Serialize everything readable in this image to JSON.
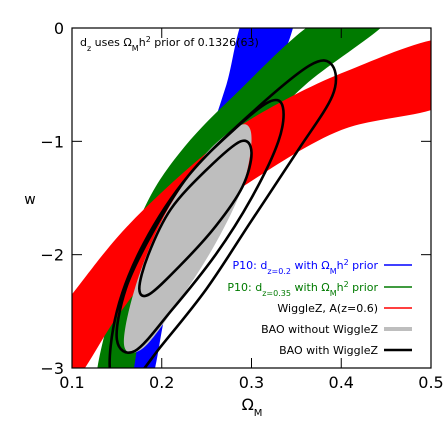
{
  "chart_data": {
    "type": "contour",
    "annotation": [
      "d",
      "z",
      " uses Ω",
      "M",
      "h",
      "2",
      " prior of 0.1326(63)"
    ],
    "x_label": [
      "Ω",
      "M"
    ],
    "y_label": "w",
    "xlim": [
      0.1,
      0.5
    ],
    "xticks": [
      0.1,
      0.2,
      0.3,
      0.4,
      0.5
    ],
    "ylim": [
      -3,
      0
    ],
    "yticks": [
      {
        "value": -3,
        "label": "−3"
      },
      {
        "value": -2,
        "label": "−2"
      },
      {
        "value": -1,
        "label": "−1"
      },
      0
    ],
    "legend": "lower right",
    "series": [
      {
        "name": [
          "P10: d",
          "z=0.2",
          " with Ω",
          "M",
          "h",
          "2",
          " prior"
        ],
        "color": "#0000ff",
        "style": "fill",
        "x": [
          0.152,
          0.17,
          0.19,
          0.22,
          0.25,
          0.272,
          0.296,
          0.348,
          0.322,
          0.29,
          0.26,
          0.23,
          0.205,
          0.186
        ],
        "y": [
          -3.15,
          -2.5,
          -2.0,
          -1.5,
          -1.0,
          -0.5,
          0.15,
          0.15,
          -0.5,
          -1.0,
          -1.5,
          -2.0,
          -2.5,
          -3.15
        ]
      },
      {
        "name": [
          "P10: d",
          "z=0.35",
          " with Ω",
          "M",
          "h",
          "2",
          " prior"
        ],
        "color": "#007a00",
        "style": "fill",
        "x": [
          0.127,
          0.15,
          0.18,
          0.22,
          0.28,
          0.38,
          0.455,
          0.36,
          0.3,
          0.25,
          0.21,
          0.18,
          0.163
        ],
        "y": [
          -3.15,
          -2.3,
          -1.6,
          -1.1,
          -0.6,
          0.1,
          0.1,
          -0.5,
          -1.0,
          -1.5,
          -2.0,
          -2.5,
          -3.15
        ]
      },
      {
        "name": "WiggleZ, A(z=0.6)",
        "color": "#ff0000",
        "style": "fill",
        "x": [
          0.08,
          0.1,
          0.15,
          0.2,
          0.25,
          0.3,
          0.4,
          0.52,
          0.52,
          0.4,
          0.3,
          0.25,
          0.2,
          0.15,
          0.11,
          0.08
        ],
        "y": [
          -2.55,
          -2.35,
          -1.85,
          -1.45,
          -1.1,
          -0.8,
          -0.4,
          -0.1,
          -0.65,
          -0.9,
          -1.35,
          -1.65,
          -2.05,
          -2.55,
          -3.05,
          -3.3
        ]
      },
      {
        "name": "BAO without WiggleZ",
        "color": "#bebebe",
        "style": "fill",
        "x": [
          0.158,
          0.17,
          0.2,
          0.24,
          0.27,
          0.293,
          0.3,
          0.29,
          0.26,
          0.22,
          0.18
        ],
        "y": [
          -2.8,
          -2.3,
          -1.7,
          -1.2,
          -0.95,
          -0.85,
          -1.0,
          -1.4,
          -1.9,
          -2.4,
          -2.82
        ]
      },
      {
        "name": "BAO with WiggleZ",
        "color": "#000000",
        "style": "line",
        "x": [
          0.175,
          0.185,
          0.21,
          0.25,
          0.288,
          0.3,
          0.29,
          0.26,
          0.22,
          0.186,
          null,
          0.15,
          0.16,
          0.19,
          0.23,
          0.28,
          0.32,
          0.335,
          0.33,
          0.3,
          0.26,
          0.21,
          0.17,
          null,
          0.143,
          0.15,
          0.18,
          0.23,
          0.3,
          0.365,
          0.39,
          0.39,
          0.35,
          0.3,
          0.25,
          0.2,
          0.168
        ],
        "y": [
          -2.3,
          -2.0,
          -1.6,
          -1.25,
          -1.0,
          -1.1,
          -1.4,
          -1.75,
          -2.1,
          -2.35,
          null,
          -2.75,
          -2.3,
          -1.8,
          -1.3,
          -0.9,
          -0.65,
          -0.7,
          -1.0,
          -1.5,
          -2.0,
          -2.5,
          -2.85,
          null,
          -3.05,
          -2.5,
          -1.9,
          -1.3,
          -0.75,
          -0.33,
          -0.33,
          -0.6,
          -1.1,
          -1.7,
          -2.3,
          -2.8,
          -3.1
        ]
      }
    ]
  }
}
